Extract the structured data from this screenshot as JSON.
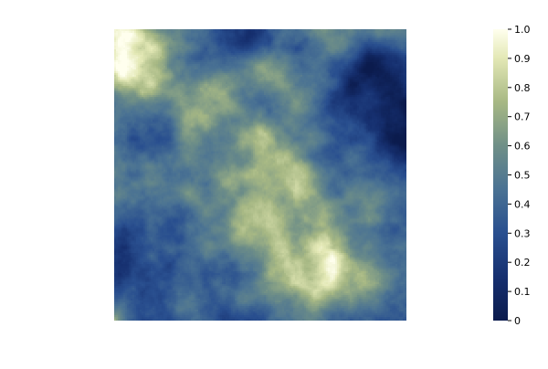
{
  "chart_data": {
    "type": "heatmap",
    "title": "",
    "xlabel": "",
    "ylabel": "",
    "axes_visible": false,
    "grid": false,
    "value_range": [
      0,
      1
    ],
    "grid_resolution": 160,
    "colormap": {
      "name": "blue-to-cream",
      "stops": [
        {
          "value": 0.0,
          "color": "#0b1b4d"
        },
        {
          "value": 0.15,
          "color": "#163070"
        },
        {
          "value": 0.3,
          "color": "#294f8f"
        },
        {
          "value": 0.45,
          "color": "#4a7293"
        },
        {
          "value": 0.6,
          "color": "#6f8f87"
        },
        {
          "value": 0.75,
          "color": "#a7b884"
        },
        {
          "value": 0.9,
          "color": "#e3e8b5"
        },
        {
          "value": 1.0,
          "color": "#ffffee"
        }
      ]
    },
    "field_features": [
      {
        "cx": 0.06,
        "cy": 0.94,
        "r": 0.1,
        "v": 0.95
      },
      {
        "cx": 0.12,
        "cy": 0.85,
        "r": 0.07,
        "v": 0.8
      },
      {
        "cx": 0.7,
        "cy": 0.15,
        "r": 0.09,
        "v": 0.95
      },
      {
        "cx": 0.62,
        "cy": 0.3,
        "r": 0.1,
        "v": 0.8
      },
      {
        "cx": 0.52,
        "cy": 0.4,
        "r": 0.12,
        "v": 0.75
      },
      {
        "cx": 0.45,
        "cy": 0.52,
        "r": 0.12,
        "v": 0.7
      },
      {
        "cx": 0.36,
        "cy": 0.62,
        "r": 0.1,
        "v": 0.65
      },
      {
        "cx": 0.3,
        "cy": 0.72,
        "r": 0.08,
        "v": 0.62
      },
      {
        "cx": 0.6,
        "cy": 0.85,
        "r": 0.06,
        "v": 0.6
      },
      {
        "cx": 0.88,
        "cy": 0.8,
        "r": 0.1,
        "v": 0.08
      },
      {
        "cx": 0.97,
        "cy": 0.65,
        "r": 0.1,
        "v": 0.08
      },
      {
        "cx": 0.33,
        "cy": 0.55,
        "r": 0.07,
        "v": 0.1
      },
      {
        "cx": 0.05,
        "cy": 0.22,
        "r": 0.1,
        "v": 0.12
      },
      {
        "cx": 0.2,
        "cy": 0.35,
        "r": 0.07,
        "v": 0.22
      },
      {
        "cx": 0.45,
        "cy": 0.97,
        "r": 0.06,
        "v": 0.2
      },
      {
        "cx": 0.26,
        "cy": 0.93,
        "r": 0.07,
        "v": 0.25
      },
      {
        "cx": 0.45,
        "cy": 0.18,
        "r": 0.06,
        "v": 0.25
      },
      {
        "cx": 0.18,
        "cy": 0.6,
        "r": 0.07,
        "v": 0.28
      },
      {
        "cx": 0.78,
        "cy": 0.55,
        "r": 0.08,
        "v": 0.35
      }
    ],
    "colorbar": {
      "range": [
        0,
        1
      ],
      "ticks": [
        {
          "value": 0.0,
          "label": "0"
        },
        {
          "value": 0.1,
          "label": "0.1"
        },
        {
          "value": 0.2,
          "label": "0.2"
        },
        {
          "value": 0.3,
          "label": "0.3"
        },
        {
          "value": 0.4,
          "label": "0.4"
        },
        {
          "value": 0.5,
          "label": "0.5"
        },
        {
          "value": 0.6,
          "label": "0.6"
        },
        {
          "value": 0.7,
          "label": "0.7"
        },
        {
          "value": 0.8,
          "label": "0.8"
        },
        {
          "value": 0.9,
          "label": "0.9"
        },
        {
          "value": 1.0,
          "label": "1.0"
        }
      ]
    }
  }
}
